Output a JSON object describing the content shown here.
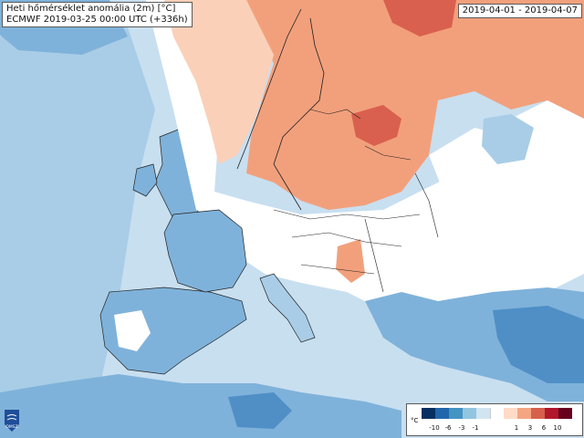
{
  "title": {
    "line1": "Heti hőmérséklet anomália (2m) [°C]",
    "line2": "ECMWF 2019-03-25 00:00 UTC (+336h)"
  },
  "date_range": "2019-04-01 - 2019-04-07",
  "logo_text": "OMSZ",
  "legend": {
    "unit": "°C",
    "negative_ticks": [
      "-10",
      "-6",
      "-3",
      "-1"
    ],
    "positive_ticks": [
      "1",
      "3",
      "6",
      "10"
    ],
    "colors": {
      "cold": [
        "#053061",
        "#2166ac",
        "#4393c3",
        "#92c5de",
        "#d1e5f0"
      ],
      "neutral": "#ffffff",
      "warm": [
        "#fddbc7",
        "#f4a582",
        "#d6604d",
        "#b2182b",
        "#67001f"
      ]
    }
  },
  "map_colors": {
    "sea": "#c8dff0",
    "cold_light": "#a9cde6",
    "cold_mid": "#7fb2da",
    "cold_strong": "#4f8fc6",
    "neutral": "#ffffff",
    "warm_light": "#fbd0b8",
    "warm_mid": "#f2a07c",
    "warm_strong": "#d9604e",
    "border": "#222222"
  }
}
